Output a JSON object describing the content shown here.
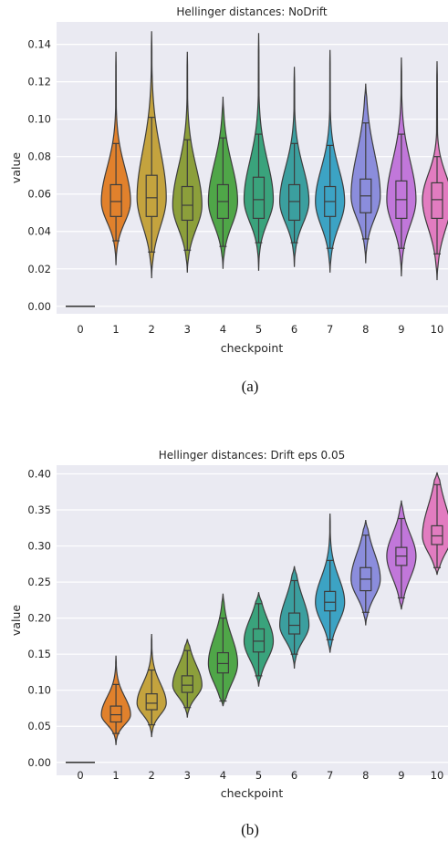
{
  "chart_data": [
    {
      "type": "violin",
      "title": "Hellinger distances: NoDrift",
      "xlabel": "checkpoint",
      "ylabel": "value",
      "caption": "(a)",
      "ylim": [
        -0.004,
        0.152
      ],
      "yticks": [
        0.0,
        0.02,
        0.04,
        0.06,
        0.08,
        0.1,
        0.12,
        0.14
      ],
      "ytick_labels": [
        "0.00",
        "0.02",
        "0.04",
        "0.06",
        "0.08",
        "0.10",
        "0.12",
        "0.14"
      ],
      "grid": true,
      "categories": [
        "0",
        "1",
        "2",
        "3",
        "4",
        "5",
        "6",
        "7",
        "8",
        "9",
        "10"
      ],
      "colors": [
        "#3274a1",
        "#e1812c",
        "#c4a33e",
        "#8c9f3b",
        "#4fa648",
        "#3aa37c",
        "#3b9f9f",
        "#3ca3c4",
        "#8b8ddc",
        "#c177da",
        "#e27cc0"
      ],
      "series": [
        {
          "category": "0",
          "min": 0.0,
          "q1": 0.0,
          "median": 0.0,
          "q3": 0.0,
          "max": 0.0,
          "whisker_low": 0.0,
          "whisker_high": 0.0
        },
        {
          "category": "1",
          "min": 0.022,
          "whisker_low": 0.035,
          "q1": 0.048,
          "median": 0.056,
          "q3": 0.065,
          "whisker_high": 0.087,
          "max": 0.136
        },
        {
          "category": "2",
          "min": 0.015,
          "whisker_low": 0.029,
          "q1": 0.048,
          "median": 0.058,
          "q3": 0.07,
          "whisker_high": 0.101,
          "max": 0.147
        },
        {
          "category": "3",
          "min": 0.018,
          "whisker_low": 0.03,
          "q1": 0.046,
          "median": 0.054,
          "q3": 0.064,
          "whisker_high": 0.089,
          "max": 0.136
        },
        {
          "category": "4",
          "min": 0.02,
          "whisker_low": 0.032,
          "q1": 0.047,
          "median": 0.056,
          "q3": 0.065,
          "whisker_high": 0.09,
          "max": 0.112
        },
        {
          "category": "5",
          "min": 0.019,
          "whisker_low": 0.034,
          "q1": 0.047,
          "median": 0.057,
          "q3": 0.069,
          "whisker_high": 0.092,
          "max": 0.146
        },
        {
          "category": "6",
          "min": 0.021,
          "whisker_low": 0.034,
          "q1": 0.046,
          "median": 0.056,
          "q3": 0.065,
          "whisker_high": 0.087,
          "max": 0.128
        },
        {
          "category": "7",
          "min": 0.018,
          "whisker_low": 0.031,
          "q1": 0.048,
          "median": 0.056,
          "q3": 0.064,
          "whisker_high": 0.086,
          "max": 0.137
        },
        {
          "category": "8",
          "min": 0.023,
          "whisker_low": 0.036,
          "q1": 0.05,
          "median": 0.059,
          "q3": 0.068,
          "whisker_high": 0.098,
          "max": 0.119
        },
        {
          "category": "9",
          "min": 0.016,
          "whisker_low": 0.031,
          "q1": 0.047,
          "median": 0.057,
          "q3": 0.067,
          "whisker_high": 0.092,
          "max": 0.133
        },
        {
          "category": "10",
          "min": 0.014,
          "whisker_low": 0.028,
          "q1": 0.047,
          "median": 0.057,
          "q3": 0.066,
          "whisker_high": 0.08,
          "max": 0.131
        }
      ]
    },
    {
      "type": "violin",
      "title": "Hellinger distances: Drift eps 0.05",
      "xlabel": "checkpoint",
      "ylabel": "value",
      "caption": "(b)",
      "ylim": [
        -0.018,
        0.412
      ],
      "yticks": [
        0.0,
        0.05,
        0.1,
        0.15,
        0.2,
        0.25,
        0.3,
        0.35,
        0.4
      ],
      "ytick_labels": [
        "0.00",
        "0.05",
        "0.10",
        "0.15",
        "0.20",
        "0.25",
        "0.30",
        "0.35",
        "0.40"
      ],
      "grid": true,
      "categories": [
        "0",
        "1",
        "2",
        "3",
        "4",
        "5",
        "6",
        "7",
        "8",
        "9",
        "10"
      ],
      "colors": [
        "#3274a1",
        "#e1812c",
        "#c4a33e",
        "#8c9f3b",
        "#4fa648",
        "#3aa37c",
        "#3b9f9f",
        "#3ca3c4",
        "#8b8ddc",
        "#c177da",
        "#e27cc0"
      ],
      "series": [
        {
          "category": "0",
          "min": 0.0,
          "q1": 0.0,
          "median": 0.0,
          "q3": 0.0,
          "max": 0.0,
          "whisker_low": 0.0,
          "whisker_high": 0.0
        },
        {
          "category": "1",
          "min": 0.024,
          "whisker_low": 0.04,
          "q1": 0.056,
          "median": 0.066,
          "q3": 0.078,
          "whisker_high": 0.108,
          "max": 0.148
        },
        {
          "category": "2",
          "min": 0.035,
          "whisker_low": 0.052,
          "q1": 0.073,
          "median": 0.082,
          "q3": 0.095,
          "whisker_high": 0.128,
          "max": 0.178
        },
        {
          "category": "3",
          "min": 0.062,
          "whisker_low": 0.076,
          "q1": 0.097,
          "median": 0.107,
          "q3": 0.12,
          "whisker_high": 0.155,
          "max": 0.171
        },
        {
          "category": "4",
          "min": 0.078,
          "whisker_low": 0.085,
          "q1": 0.124,
          "median": 0.137,
          "q3": 0.152,
          "whisker_high": 0.2,
          "max": 0.234
        },
        {
          "category": "5",
          "min": 0.105,
          "whisker_low": 0.12,
          "q1": 0.153,
          "median": 0.168,
          "q3": 0.185,
          "whisker_high": 0.22,
          "max": 0.236
        },
        {
          "category": "6",
          "min": 0.13,
          "whisker_low": 0.15,
          "q1": 0.178,
          "median": 0.19,
          "q3": 0.207,
          "whisker_high": 0.252,
          "max": 0.272
        },
        {
          "category": "7",
          "min": 0.152,
          "whisker_low": 0.17,
          "q1": 0.21,
          "median": 0.222,
          "q3": 0.237,
          "whisker_high": 0.28,
          "max": 0.345
        },
        {
          "category": "8",
          "min": 0.19,
          "whisker_low": 0.208,
          "q1": 0.238,
          "median": 0.254,
          "q3": 0.27,
          "whisker_high": 0.315,
          "max": 0.336
        },
        {
          "category": "9",
          "min": 0.212,
          "whisker_low": 0.228,
          "q1": 0.273,
          "median": 0.286,
          "q3": 0.298,
          "whisker_high": 0.338,
          "max": 0.363
        },
        {
          "category": "10",
          "min": 0.26,
          "whisker_low": 0.27,
          "q1": 0.302,
          "median": 0.314,
          "q3": 0.328,
          "whisker_high": 0.385,
          "max": 0.402
        }
      ]
    }
  ]
}
